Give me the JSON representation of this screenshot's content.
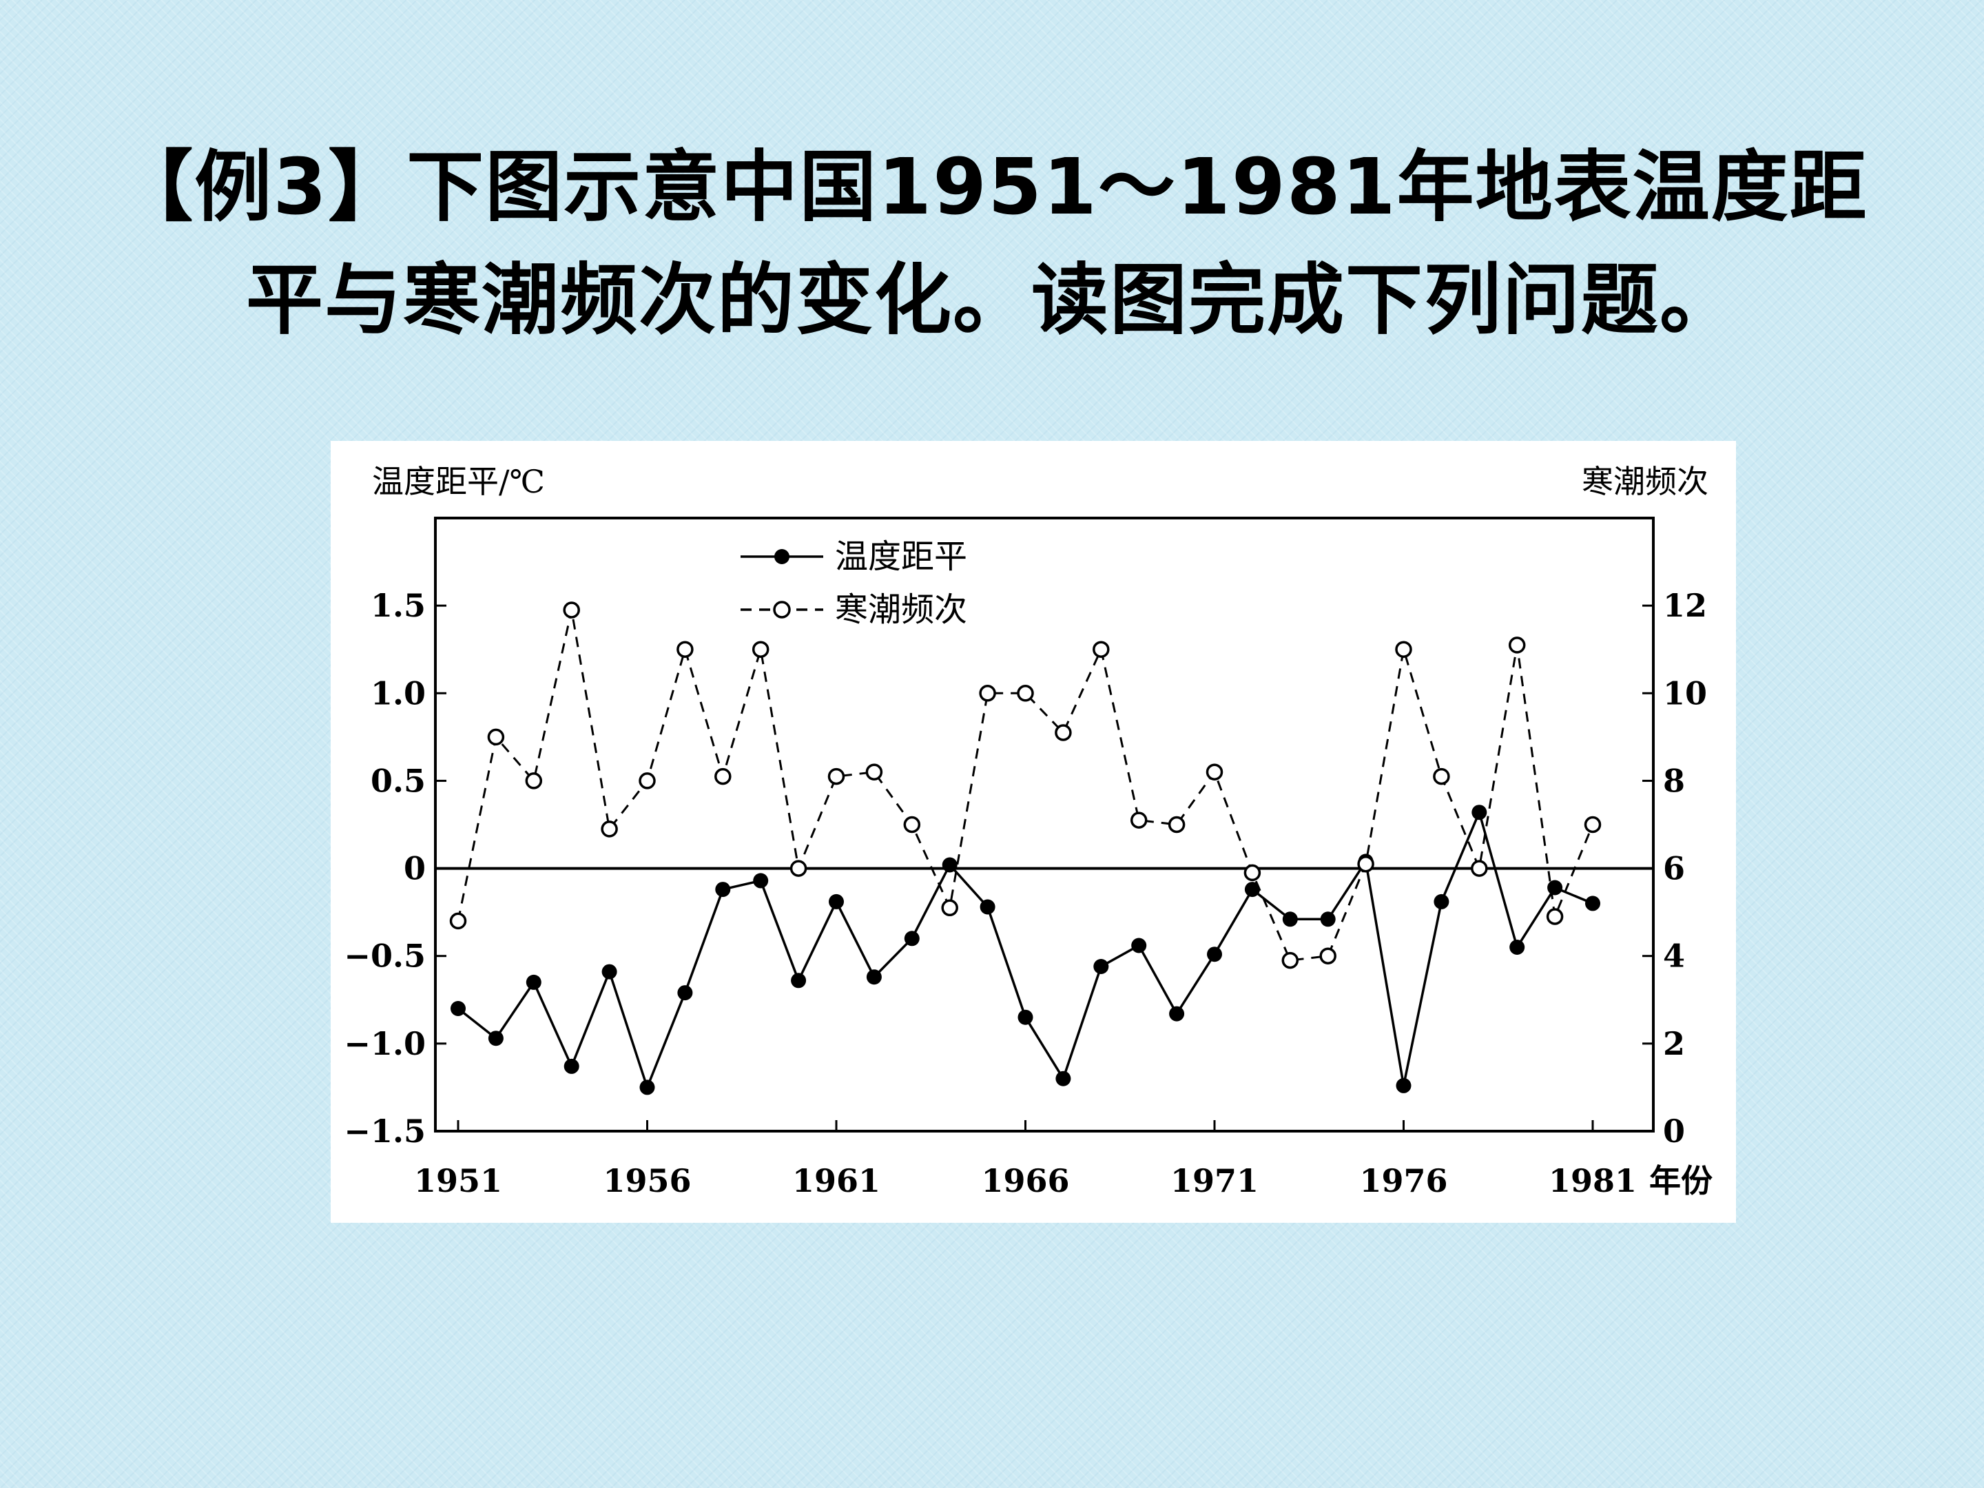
{
  "title": {
    "line1": "【例3】下图示意中国1951～1981年地表温度距",
    "line2": "平与寒潮频次的变化。读图完成下列问题。"
  },
  "chart_data": {
    "type": "line",
    "x_axis_label": "年份",
    "left_axis_label": "温度距平/℃",
    "right_axis_label": "寒潮频次",
    "x_ticks": [
      "1951",
      "1956",
      "1961",
      "1966",
      "1971",
      "1976",
      "1981"
    ],
    "x_tick_values": [
      1951,
      1956,
      1961,
      1966,
      1971,
      1976,
      1981
    ],
    "xlim": [
      1951,
      1981
    ],
    "left_ylim": [
      -1.5,
      2.0
    ],
    "left_ticks": [
      "1.5",
      "1.0",
      "0.5",
      "0",
      "−0.5",
      "−1.0",
      "−1.5"
    ],
    "left_tick_values": [
      1.5,
      1.0,
      0.5,
      0,
      -0.5,
      -1.0,
      -1.5
    ],
    "right_ylim": [
      0,
      14
    ],
    "right_ticks": [
      "12",
      "10",
      "8",
      "6",
      "4",
      "2",
      "0"
    ],
    "right_tick_values": [
      12,
      10,
      8,
      6,
      4,
      2,
      0
    ],
    "series": [
      {
        "name": "温度距平",
        "axis": "left",
        "style": "solid-filled-marker",
        "x": [
          1951,
          1952,
          1953,
          1954,
          1955,
          1956,
          1957,
          1958,
          1959,
          1960,
          1961,
          1962,
          1963,
          1964,
          1965,
          1966,
          1967,
          1968,
          1969,
          1970,
          1971,
          1972,
          1973,
          1974,
          1975,
          1976,
          1977,
          1978,
          1979,
          1980,
          1981
        ],
        "values": [
          -0.8,
          -0.97,
          -0.65,
          -1.13,
          -0.59,
          -1.25,
          -0.71,
          -0.12,
          -0.07,
          -0.64,
          -0.19,
          -0.62,
          -0.4,
          0.02,
          -0.22,
          -0.85,
          -1.2,
          -0.56,
          -0.44,
          -0.83,
          -0.49,
          -0.12,
          -0.29,
          -0.29,
          0.04,
          -1.24,
          -0.19,
          0.32,
          -0.45,
          -0.11,
          -0.2
        ]
      },
      {
        "name": "寒潮频次",
        "axis": "right",
        "style": "dashed-open-marker",
        "x": [
          1951,
          1952,
          1953,
          1954,
          1955,
          1956,
          1957,
          1958,
          1959,
          1960,
          1961,
          1962,
          1963,
          1964,
          1965,
          1966,
          1967,
          1968,
          1969,
          1970,
          1971,
          1972,
          1973,
          1974,
          1975,
          1976,
          1977,
          1978,
          1979,
          1980,
          1981
        ],
        "values": [
          4.8,
          9.0,
          8.0,
          11.9,
          6.9,
          8.0,
          11.0,
          8.1,
          11.0,
          6.0,
          8.1,
          8.2,
          7.0,
          5.1,
          10.0,
          10.0,
          9.1,
          11.0,
          7.1,
          7.0,
          8.2,
          5.9,
          3.9,
          4.0,
          6.1,
          11.0,
          8.1,
          6.0,
          11.1,
          4.9,
          7.0
        ]
      }
    ]
  }
}
